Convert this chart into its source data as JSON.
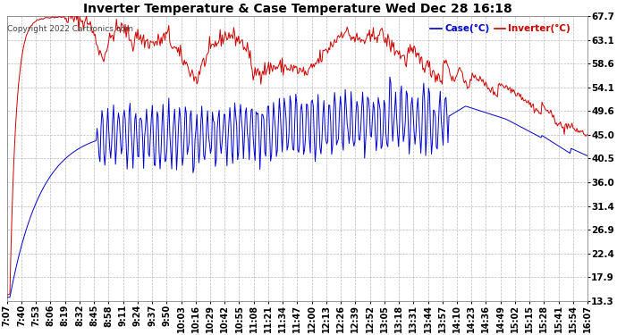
{
  "title": "Inverter Temperature & Case Temperature Wed Dec 28 16:18",
  "copyright": "Copyright 2022 Cartronics.com",
  "legend_case": "Case(°C)",
  "legend_inverter": "Inverter(°C)",
  "yticks": [
    13.3,
    17.9,
    22.4,
    26.9,
    31.4,
    36.0,
    40.5,
    45.0,
    49.6,
    54.1,
    58.6,
    63.1,
    67.7
  ],
  "ylim": [
    13.3,
    67.7
  ],
  "background_color": "#ffffff",
  "plot_bg_color": "#ffffff",
  "grid_color": "#bbbbbb",
  "title_color": "#000000",
  "case_color": "#0000cc",
  "inverter_color": "#cc0000",
  "title_fontsize": 10,
  "tick_fontsize": 7.5,
  "copyright_fontsize": 6.5,
  "xtick_labels": [
    "7:07",
    "7:40",
    "7:53",
    "8:06",
    "8:19",
    "8:32",
    "8:45",
    "8:58",
    "9:11",
    "9:24",
    "9:37",
    "9:50",
    "10:03",
    "10:16",
    "10:29",
    "10:42",
    "10:55",
    "11:08",
    "11:21",
    "11:34",
    "11:47",
    "12:00",
    "12:13",
    "12:26",
    "12:39",
    "12:52",
    "13:05",
    "13:18",
    "13:31",
    "13:44",
    "13:57",
    "14:10",
    "14:23",
    "14:36",
    "14:49",
    "15:02",
    "15:15",
    "15:28",
    "15:41",
    "15:54",
    "16:07"
  ]
}
